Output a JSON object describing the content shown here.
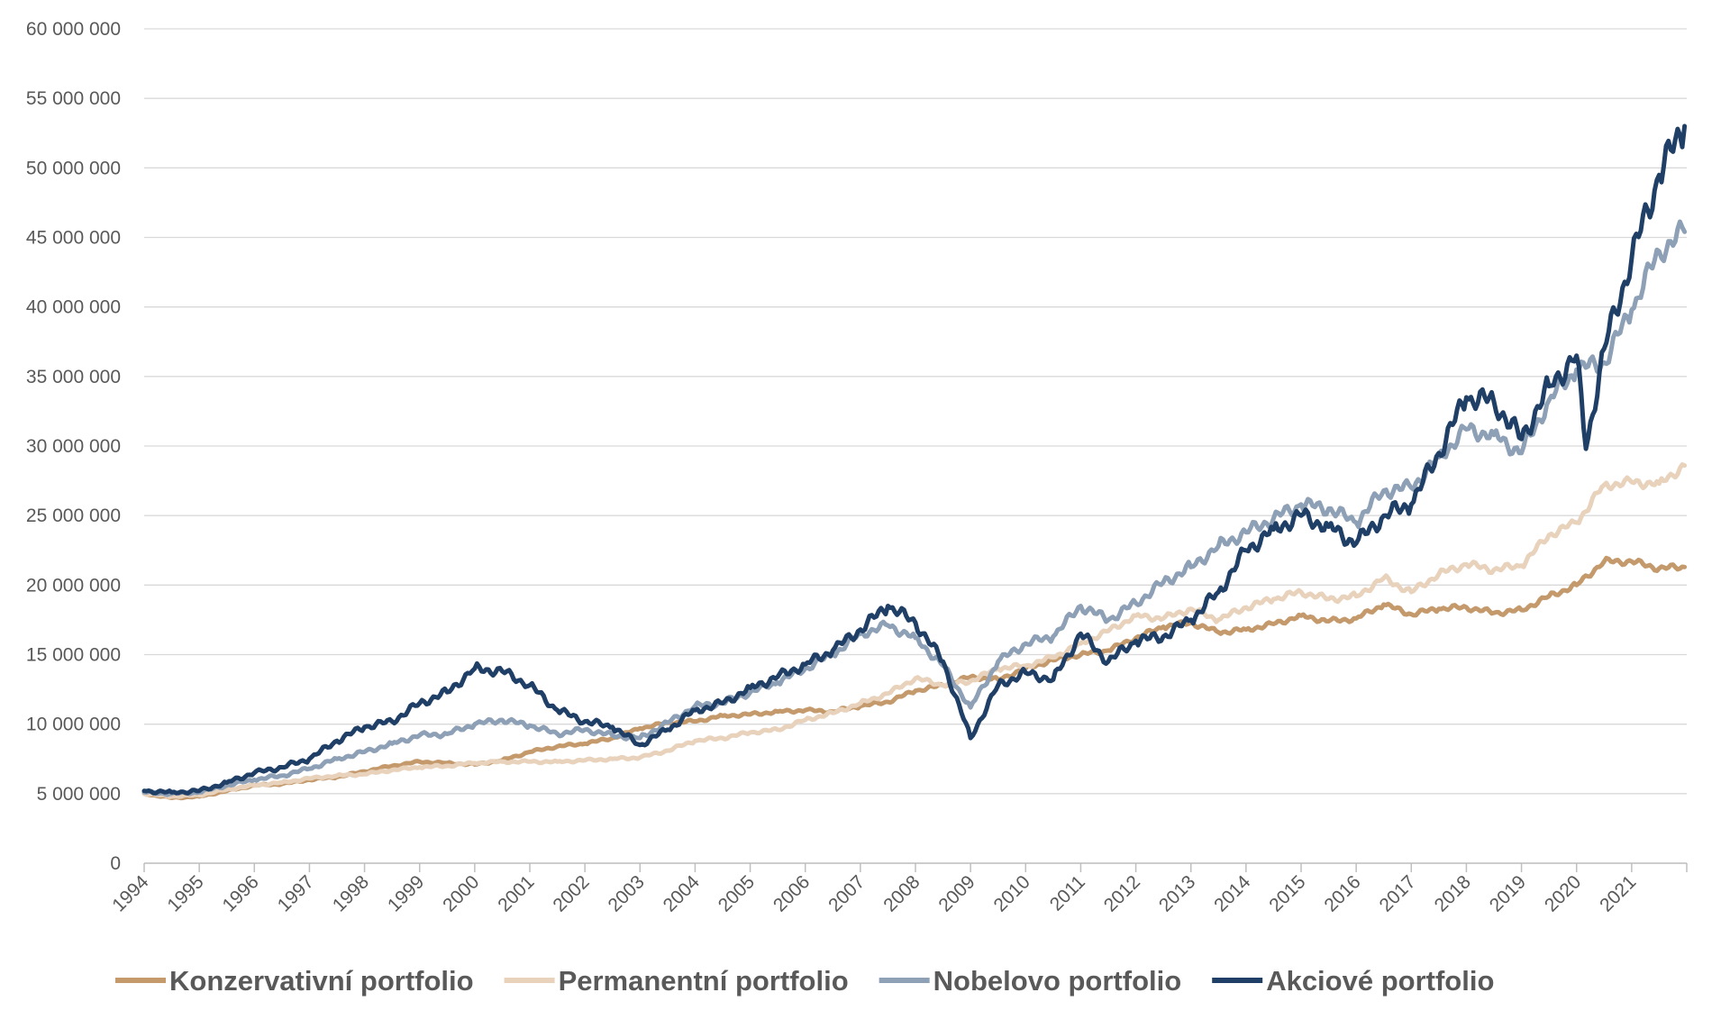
{
  "chart_data": {
    "type": "line",
    "title": "",
    "xlabel": "",
    "ylabel": "",
    "ylim": [
      0,
      60000000
    ],
    "xlim": [
      1994,
      2022
    ],
    "grid": "horizontal",
    "legend_position": "bottom",
    "y_ticks": [
      {
        "value": 0,
        "label": "0"
      },
      {
        "value": 5000000,
        "label": "5 000 000"
      },
      {
        "value": 10000000,
        "label": "10 000 000"
      },
      {
        "value": 15000000,
        "label": "15 000 000"
      },
      {
        "value": 20000000,
        "label": "20 000 000"
      },
      {
        "value": 25000000,
        "label": "25 000 000"
      },
      {
        "value": 30000000,
        "label": "30 000 000"
      },
      {
        "value": 35000000,
        "label": "35 000 000"
      },
      {
        "value": 40000000,
        "label": "40 000 000"
      },
      {
        "value": 45000000,
        "label": "45 000 000"
      },
      {
        "value": 50000000,
        "label": "50 000 000"
      },
      {
        "value": 55000000,
        "label": "55 000 000"
      },
      {
        "value": 60000000,
        "label": "60 000 000"
      }
    ],
    "x_ticks": [
      "1994",
      "1995",
      "1996",
      "1997",
      "1998",
      "1999",
      "2000",
      "2001",
      "2002",
      "2003",
      "2004",
      "2005",
      "2006",
      "2007",
      "2008",
      "2009",
      "2010",
      "2011",
      "2012",
      "2013",
      "2014",
      "2015",
      "2016",
      "2017",
      "2018",
      "2019",
      "2020",
      "2021"
    ],
    "series": [
      {
        "name": "Konzervativní portfolio",
        "color": "#c49a6c",
        "points": [
          [
            1994,
            5000000
          ],
          [
            1994.5,
            4700000
          ],
          [
            1995,
            4800000
          ],
          [
            1995.5,
            5200000
          ],
          [
            1996,
            5600000
          ],
          [
            1996.5,
            5700000
          ],
          [
            1997,
            6000000
          ],
          [
            1997.5,
            6200000
          ],
          [
            1998,
            6600000
          ],
          [
            1998.5,
            7000000
          ],
          [
            1999,
            7300000
          ],
          [
            1999.5,
            7200000
          ],
          [
            2000,
            7100000
          ],
          [
            2000.5,
            7400000
          ],
          [
            2001,
            8000000
          ],
          [
            2001.5,
            8400000
          ],
          [
            2002,
            8600000
          ],
          [
            2002.5,
            9000000
          ],
          [
            2003,
            9700000
          ],
          [
            2003.5,
            10100000
          ],
          [
            2004,
            10200000
          ],
          [
            2004.5,
            10600000
          ],
          [
            2005,
            10700000
          ],
          [
            2005.5,
            10900000
          ],
          [
            2006,
            11000000
          ],
          [
            2006.5,
            10900000
          ],
          [
            2007,
            11300000
          ],
          [
            2007.5,
            11600000
          ],
          [
            2008,
            12400000
          ],
          [
            2008.5,
            12800000
          ],
          [
            2009,
            13400000
          ],
          [
            2009.5,
            13200000
          ],
          [
            2010,
            14000000
          ],
          [
            2010.5,
            14600000
          ],
          [
            2011,
            15000000
          ],
          [
            2011.5,
            15300000
          ],
          [
            2012,
            16200000
          ],
          [
            2012.5,
            17000000
          ],
          [
            2013,
            17300000
          ],
          [
            2013.5,
            16600000
          ],
          [
            2014,
            16800000
          ],
          [
            2014.5,
            17200000
          ],
          [
            2015,
            17800000
          ],
          [
            2015.5,
            17400000
          ],
          [
            2016,
            17600000
          ],
          [
            2016.5,
            18600000
          ],
          [
            2017,
            17900000
          ],
          [
            2017.5,
            18300000
          ],
          [
            2018,
            18400000
          ],
          [
            2018.5,
            18000000
          ],
          [
            2019,
            18200000
          ],
          [
            2019.5,
            19200000
          ],
          [
            2020,
            20000000
          ],
          [
            2020.5,
            21700000
          ],
          [
            2021,
            21700000
          ],
          [
            2021.5,
            21200000
          ],
          [
            2021.96,
            21300000
          ]
        ]
      },
      {
        "name": "Permanentní portfolio",
        "color": "#e8d2bc",
        "points": [
          [
            1994,
            5000000
          ],
          [
            1994.5,
            4800000
          ],
          [
            1995,
            4900000
          ],
          [
            1995.5,
            5300000
          ],
          [
            1996,
            5600000
          ],
          [
            1996.5,
            5800000
          ],
          [
            1997,
            6100000
          ],
          [
            1997.5,
            6300000
          ],
          [
            1998,
            6400000
          ],
          [
            1998.5,
            6700000
          ],
          [
            1999,
            6900000
          ],
          [
            1999.5,
            7000000
          ],
          [
            2000,
            7200000
          ],
          [
            2000.5,
            7300000
          ],
          [
            2001,
            7300000
          ],
          [
            2001.5,
            7300000
          ],
          [
            2002,
            7400000
          ],
          [
            2002.5,
            7500000
          ],
          [
            2003,
            7600000
          ],
          [
            2003.5,
            8100000
          ],
          [
            2004,
            8800000
          ],
          [
            2004.5,
            9000000
          ],
          [
            2005,
            9400000
          ],
          [
            2005.5,
            9600000
          ],
          [
            2006,
            10300000
          ],
          [
            2006.5,
            10800000
          ],
          [
            2007,
            11500000
          ],
          [
            2007.5,
            12200000
          ],
          [
            2008,
            13300000
          ],
          [
            2008.5,
            12800000
          ],
          [
            2009,
            13100000
          ],
          [
            2009.5,
            14000000
          ],
          [
            2010,
            14200000
          ],
          [
            2010.5,
            14800000
          ],
          [
            2011,
            15800000
          ],
          [
            2011.5,
            16700000
          ],
          [
            2012,
            17800000
          ],
          [
            2012.5,
            17600000
          ],
          [
            2013,
            18300000
          ],
          [
            2013.5,
            17500000
          ],
          [
            2014,
            18400000
          ],
          [
            2014.5,
            19000000
          ],
          [
            2015,
            19500000
          ],
          [
            2015.5,
            19000000
          ],
          [
            2016,
            19200000
          ],
          [
            2016.5,
            20500000
          ],
          [
            2017,
            19500000
          ],
          [
            2017.5,
            20800000
          ],
          [
            2018,
            21500000
          ],
          [
            2018.5,
            21100000
          ],
          [
            2019,
            21400000
          ],
          [
            2019.5,
            23600000
          ],
          [
            2020,
            24500000
          ],
          [
            2020.5,
            27200000
          ],
          [
            2021,
            27400000
          ],
          [
            2021.5,
            27300000
          ],
          [
            2021.96,
            28600000
          ]
        ]
      },
      {
        "name": "Nobelovo portfolio",
        "color": "#8da0b6",
        "points": [
          [
            1994,
            5100000
          ],
          [
            1994.5,
            5000000
          ],
          [
            1995,
            5100000
          ],
          [
            1995.5,
            5600000
          ],
          [
            1996,
            6000000
          ],
          [
            1996.5,
            6300000
          ],
          [
            1997,
            6800000
          ],
          [
            1997.5,
            7500000
          ],
          [
            1998,
            8000000
          ],
          [
            1998.5,
            8600000
          ],
          [
            1999,
            9200000
          ],
          [
            1999.5,
            9300000
          ],
          [
            2000,
            10000000
          ],
          [
            2000.5,
            10300000
          ],
          [
            2001,
            9900000
          ],
          [
            2001.5,
            9300000
          ],
          [
            2002,
            9600000
          ],
          [
            2002.5,
            9200000
          ],
          [
            2003,
            9000000
          ],
          [
            2003.5,
            10100000
          ],
          [
            2004,
            11300000
          ],
          [
            2004.5,
            11500000
          ],
          [
            2005,
            12300000
          ],
          [
            2005.5,
            13000000
          ],
          [
            2006,
            14000000
          ],
          [
            2006.5,
            15000000
          ],
          [
            2007,
            16500000
          ],
          [
            2007.5,
            17100000
          ],
          [
            2008,
            16200000
          ],
          [
            2008.5,
            14200000
          ],
          [
            2009,
            11200000
          ],
          [
            2009.5,
            14500000
          ],
          [
            2010,
            15800000
          ],
          [
            2010.5,
            16300000
          ],
          [
            2011,
            18500000
          ],
          [
            2011.5,
            17500000
          ],
          [
            2012,
            18700000
          ],
          [
            2012.5,
            20200000
          ],
          [
            2013,
            21300000
          ],
          [
            2013.5,
            22800000
          ],
          [
            2014,
            23800000
          ],
          [
            2014.5,
            24800000
          ],
          [
            2015,
            25800000
          ],
          [
            2015.5,
            25500000
          ],
          [
            2016,
            24500000
          ],
          [
            2016.5,
            26800000
          ],
          [
            2017,
            27000000
          ],
          [
            2017.5,
            29200000
          ],
          [
            2018,
            31200000
          ],
          [
            2018.5,
            30800000
          ],
          [
            2019,
            29500000
          ],
          [
            2019.5,
            33300000
          ],
          [
            2020,
            35500000
          ],
          [
            2020.5,
            36000000
          ],
          [
            2021,
            39800000
          ],
          [
            2021.5,
            44000000
          ],
          [
            2021.96,
            45400000
          ]
        ]
      },
      {
        "name": "Akciové portfolio",
        "color": "#1f3f66",
        "points": [
          [
            1994,
            5200000
          ],
          [
            1994.5,
            5100000
          ],
          [
            1995,
            5200000
          ],
          [
            1995.5,
            5800000
          ],
          [
            1996,
            6500000
          ],
          [
            1996.5,
            6900000
          ],
          [
            1997,
            7500000
          ],
          [
            1997.5,
            8800000
          ],
          [
            1998,
            9800000
          ],
          [
            1998.5,
            10200000
          ],
          [
            1999,
            11500000
          ],
          [
            1999.5,
            12300000
          ],
          [
            2000,
            14000000
          ],
          [
            2000.5,
            13800000
          ],
          [
            2001,
            12800000
          ],
          [
            2001.5,
            11000000
          ],
          [
            2002,
            10200000
          ],
          [
            2002.5,
            9800000
          ],
          [
            2003,
            8500000
          ],
          [
            2003.5,
            9600000
          ],
          [
            2004,
            11000000
          ],
          [
            2004.5,
            11500000
          ],
          [
            2005,
            12600000
          ],
          [
            2005.5,
            13400000
          ],
          [
            2006,
            14300000
          ],
          [
            2006.5,
            15300000
          ],
          [
            2007,
            16800000
          ],
          [
            2007.5,
            18500000
          ],
          [
            2008,
            17300000
          ],
          [
            2008.5,
            14500000
          ],
          [
            2009,
            9000000
          ],
          [
            2009.5,
            12800000
          ],
          [
            2010,
            13700000
          ],
          [
            2010.5,
            13200000
          ],
          [
            2011,
            16500000
          ],
          [
            2011.5,
            14500000
          ],
          [
            2012,
            16000000
          ],
          [
            2012.5,
            16300000
          ],
          [
            2013,
            17500000
          ],
          [
            2013.5,
            19500000
          ],
          [
            2014,
            22500000
          ],
          [
            2014.5,
            24000000
          ],
          [
            2015,
            25000000
          ],
          [
            2015.5,
            24200000
          ],
          [
            2016,
            23000000
          ],
          [
            2016.5,
            25000000
          ],
          [
            2017,
            25800000
          ],
          [
            2017.5,
            29500000
          ],
          [
            2018,
            33500000
          ],
          [
            2018.5,
            33200000
          ],
          [
            2019,
            30500000
          ],
          [
            2019.5,
            34300000
          ],
          [
            2020,
            36500000
          ],
          [
            2020.17,
            29800000
          ],
          [
            2020.5,
            37000000
          ],
          [
            2021,
            43500000
          ],
          [
            2021.5,
            49500000
          ],
          [
            2021.96,
            53000000
          ]
        ]
      }
    ]
  }
}
